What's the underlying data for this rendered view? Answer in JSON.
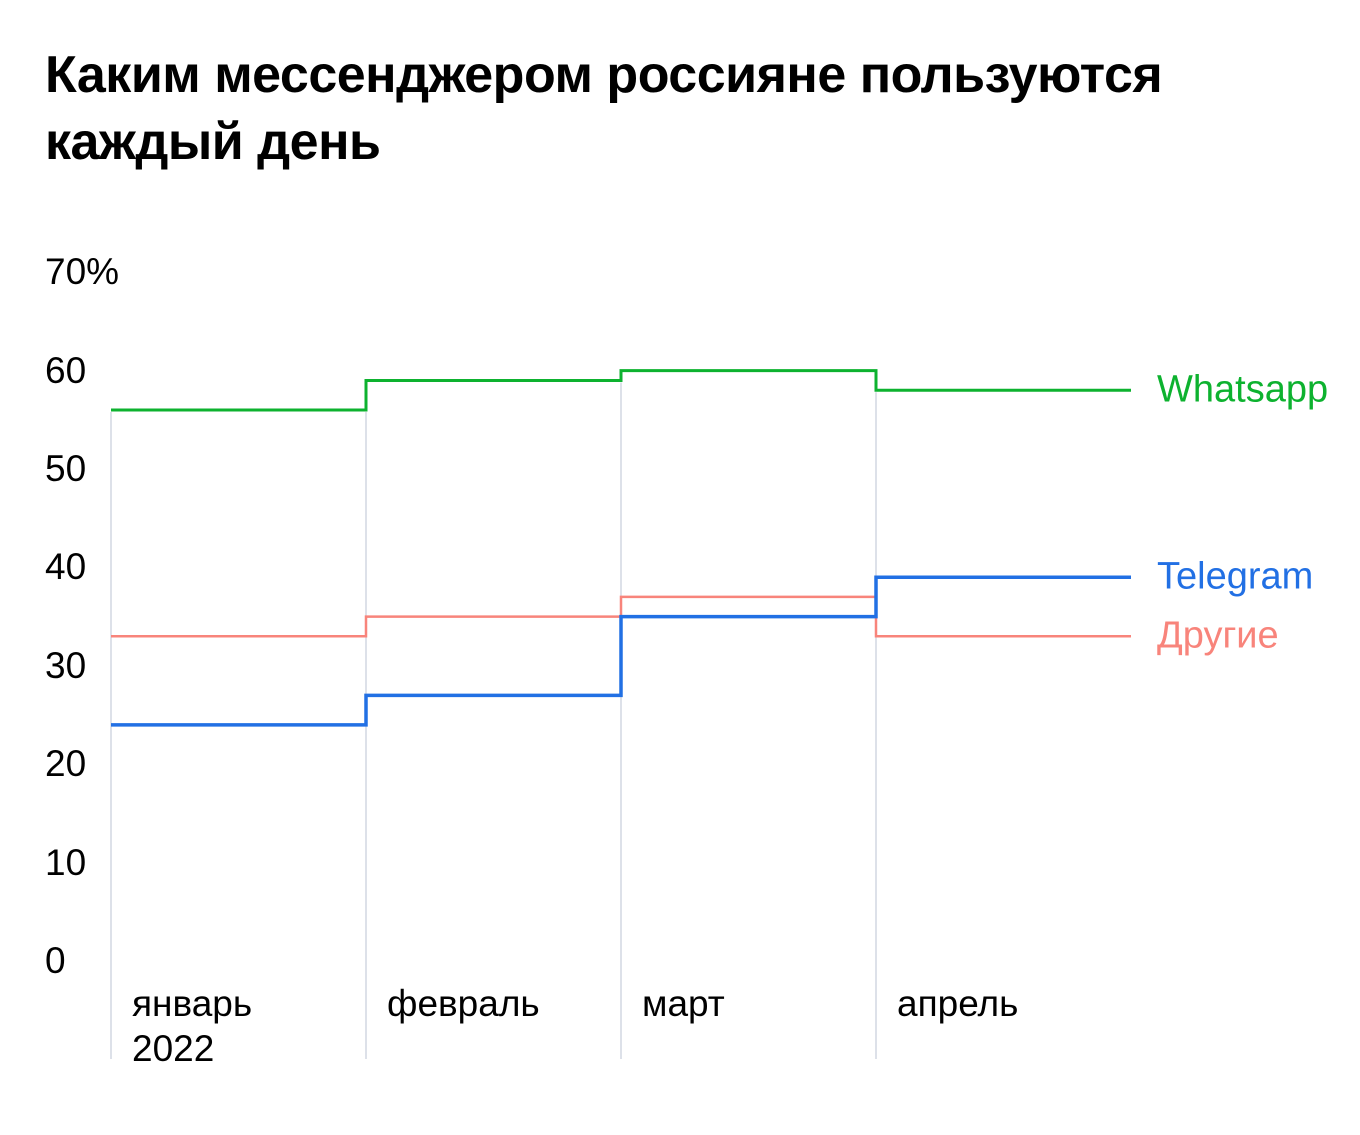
{
  "page": {
    "background": "#ffffff",
    "text_color": "#000000"
  },
  "title": {
    "text": "Каким мессенджером россияне пользуются каждый день",
    "lines": [
      "Каким мессенджером россияне пользуются",
      "каждый день"
    ]
  },
  "chart_data": {
    "type": "line",
    "step": "after",
    "title": "Каким мессенджером россияне пользуются каждый день",
    "categories": [
      "январь 2022",
      "февраль",
      "март",
      "апрель"
    ],
    "x_tick_lines": [
      [
        "январь",
        "2022"
      ],
      [
        "февраль"
      ],
      [
        "март"
      ],
      [
        "апрель"
      ]
    ],
    "series": [
      {
        "name": "Whatsapp",
        "color": "#0db22f",
        "values": [
          56,
          59,
          60,
          58
        ]
      },
      {
        "name": "Telegram",
        "color": "#2270e4",
        "values": [
          24,
          27,
          35,
          39
        ]
      },
      {
        "name": "Другие",
        "color": "#f8847b",
        "values": [
          33,
          35,
          37,
          33
        ]
      }
    ],
    "unit": "%",
    "ylim": [
      0,
      70
    ],
    "y_ticks": [
      {
        "value": 0,
        "label": "0"
      },
      {
        "value": 10,
        "label": "10"
      },
      {
        "value": 20,
        "label": "20"
      },
      {
        "value": 30,
        "label": "30"
      },
      {
        "value": 40,
        "label": "40"
      },
      {
        "value": 50,
        "label": "50"
      },
      {
        "value": 60,
        "label": "60"
      },
      {
        "value": 70,
        "label": "70%"
      }
    ],
    "grid": {
      "vertical_separators": true,
      "horizontal": false,
      "color": "#dde1e9"
    },
    "legend_position": "right-of-line-ends"
  }
}
